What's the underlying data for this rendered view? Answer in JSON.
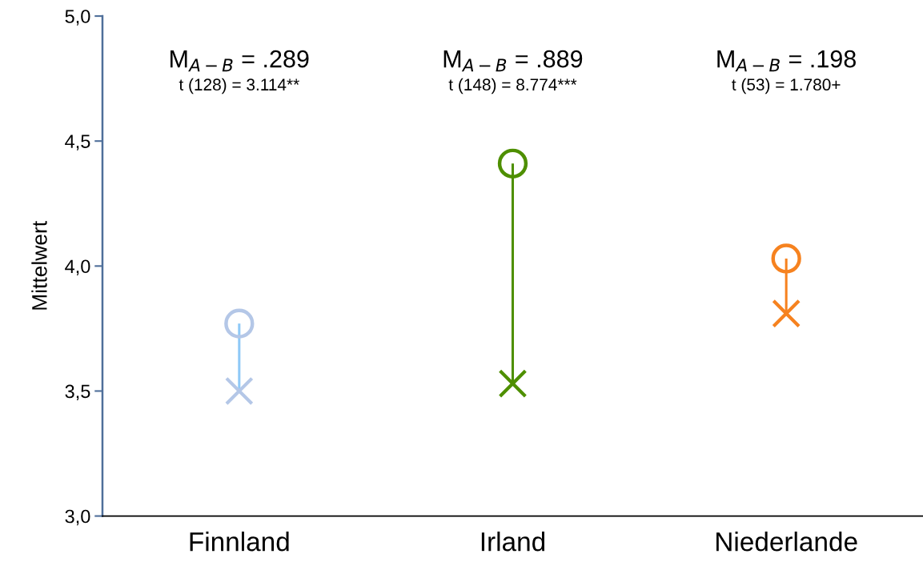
{
  "chart_data": {
    "type": "scatter",
    "ylabel": "Mittelwert",
    "categories": [
      "Finnland",
      "Irland",
      "Niederlande"
    ],
    "ylim": [
      3.0,
      5.0
    ],
    "yticks": [
      {
        "value": 3.0,
        "label": "3,0"
      },
      {
        "value": 3.5,
        "label": "3,5"
      },
      {
        "value": 4.0,
        "label": "4,0"
      },
      {
        "value": 4.5,
        "label": "4,5"
      },
      {
        "value": 5.0,
        "label": "5,0"
      }
    ],
    "grid": false,
    "series": [
      {
        "type": "line",
        "color": "#8ec9f7",
        "x": [
          "Finnland",
          "Finnland"
        ],
        "values": [
          3.77,
          3.5
        ]
      },
      {
        "type": "line",
        "color": "#4e8f00",
        "x": [
          "Irland",
          "Irland"
        ],
        "values": [
          4.41,
          3.53
        ]
      },
      {
        "type": "line",
        "color": "#f6821f",
        "x": [
          "Niederlande",
          "Niederlande"
        ],
        "values": [
          4.03,
          3.81
        ]
      },
      {
        "marker": "circle",
        "colors": [
          "#b4c7e7",
          "#4e8f00",
          "#f6821f"
        ],
        "values": [
          3.77,
          4.41,
          4.03
        ]
      },
      {
        "marker": "cross",
        "colors": [
          "#b4c7e7",
          "#4e8f00",
          "#f6821f"
        ],
        "values": [
          3.5,
          3.53,
          3.81
        ]
      }
    ],
    "annotations": [
      "M$_{A−B}$ = .289",
      "t (128) = 3.114**",
      "M$_{A−B}$ = .889",
      "t (148) = 8.774***",
      "M$_{A−B}$ = .198",
      "t (53) = 1.780+"
    ]
  }
}
